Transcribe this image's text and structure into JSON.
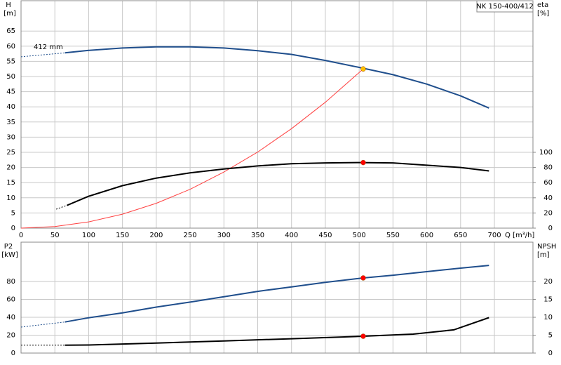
{
  "chart_data": [
    {
      "type": "line",
      "box_label": "NK 150-400/412",
      "y_label": "H",
      "y_unit": "[m]",
      "y2_label": "eta",
      "y2_unit": "[%]",
      "x_label": "Q [m³/h]",
      "xlim": [
        0,
        757
      ],
      "xticks": [
        0,
        50,
        100,
        150,
        200,
        250,
        300,
        350,
        400,
        450,
        500,
        550,
        600,
        650,
        700
      ],
      "ylim": [
        0,
        75
      ],
      "yticks": [
        0,
        5,
        10,
        15,
        20,
        25,
        30,
        35,
        40,
        45,
        50,
        55,
        60,
        65
      ],
      "y2lim": [
        0,
        300
      ],
      "y2ticks": [
        0,
        20,
        40,
        60,
        80,
        100
      ],
      "grid": true,
      "show_xtick_labels": true,
      "series": [
        {
          "name": "412 mm",
          "color": "#1f4e8c",
          "width": 2,
          "dashed_segments": 1,
          "x": [
            0,
            65,
            100,
            150,
            200,
            250,
            300,
            350,
            400,
            450,
            500,
            550,
            600,
            650,
            692
          ],
          "values": [
            56.5,
            57.8,
            58.6,
            59.4,
            59.8,
            59.8,
            59.4,
            58.5,
            57.3,
            55.3,
            53,
            50.6,
            47.5,
            43.6,
            39.6
          ]
        },
        {
          "color": "#ff4040",
          "width": 1,
          "x": [
            0,
            50,
            100,
            150,
            200,
            250,
            300,
            350,
            400,
            450,
            506
          ],
          "values": [
            0,
            0.5,
            2.05,
            4.6,
            8.2,
            12.8,
            18.5,
            25.1,
            32.8,
            41.5,
            52.5
          ]
        },
        {
          "color": "#000000",
          "width": 2,
          "axis": "y2",
          "dashed_segments": 1,
          "x": [
            52,
            68,
            100,
            150,
            200,
            250,
            300,
            350,
            400,
            450,
            500,
            550,
            600,
            650,
            692
          ],
          "values": [
            25,
            30,
            42,
            56,
            66,
            73,
            78,
            82,
            85,
            86,
            86.5,
            86,
            83,
            80,
            75.5
          ]
        },
        {
          "color": "#ffc000",
          "marker": true,
          "x": [
            506
          ],
          "values": [
            52.5
          ]
        },
        {
          "color": "#ff0000",
          "marker": true,
          "axis": "y2",
          "x": [
            506
          ],
          "values": [
            86.5
          ]
        }
      ]
    },
    {
      "type": "line",
      "y_label": "P2",
      "y_unit": "[kW]",
      "y2_label": "NPSH",
      "y2_unit": "[m]",
      "xlim": [
        0,
        757
      ],
      "xticks": [
        0,
        50,
        100,
        150,
        200,
        250,
        300,
        350,
        400,
        450,
        500,
        550,
        600,
        650,
        700
      ],
      "ylim": [
        0,
        124
      ],
      "yticks": [
        0,
        20,
        40,
        60,
        80
      ],
      "y2lim": [
        0,
        31
      ],
      "y2ticks": [
        0,
        5,
        10,
        15,
        20
      ],
      "grid": true,
      "show_xtick_labels": false,
      "series": [
        {
          "color": "#1f4e8c",
          "width": 2,
          "dashed_segments": 1,
          "x": [
            0,
            65,
            100,
            150,
            200,
            250,
            300,
            350,
            400,
            450,
            506,
            550,
            600,
            650,
            692
          ],
          "values": [
            29,
            34.8,
            39.5,
            45,
            51.4,
            57,
            63,
            69,
            74,
            79,
            84,
            87,
            91,
            95,
            98
          ]
        },
        {
          "color": "#000000",
          "width": 2,
          "axis": "y2",
          "dashed_segments": 1,
          "x": [
            0,
            65,
            100,
            200,
            300,
            400,
            506,
            580,
            640,
            692
          ],
          "values": [
            2.2,
            2.2,
            2.25,
            2.8,
            3.4,
            4.0,
            4.7,
            5.3,
            6.5,
            9.9
          ]
        },
        {
          "color": "#ff0000",
          "marker": true,
          "x": [
            506
          ],
          "values": [
            84
          ]
        },
        {
          "color": "#ff0000",
          "marker": true,
          "axis": "y2",
          "x": [
            506
          ],
          "values": [
            4.7
          ]
        }
      ]
    }
  ]
}
